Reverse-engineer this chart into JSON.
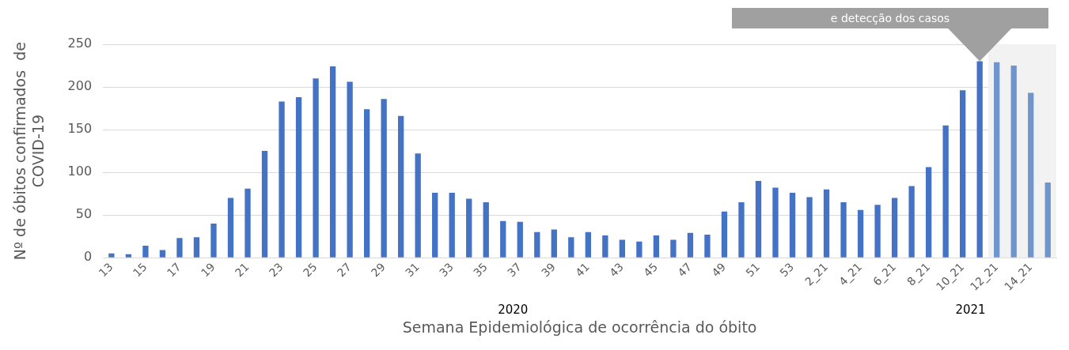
{
  "chart_data": {
    "type": "bar",
    "xlabel": "Semana Epidemiológica de ocorrência do óbito",
    "ylabel": "Nº de óbitos confirmados  de COVID-19",
    "categories": [
      "13",
      null,
      "15",
      null,
      "17",
      null,
      "19",
      null,
      "21",
      null,
      "23",
      null,
      "25",
      null,
      "27",
      null,
      "29",
      null,
      "31",
      null,
      "33",
      null,
      "35",
      null,
      "37",
      null,
      "39",
      null,
      "41",
      null,
      "43",
      null,
      "45",
      null,
      "47",
      null,
      "49",
      null,
      "51",
      null,
      "53",
      null,
      "2_21",
      null,
      "4_21",
      null,
      "6_21",
      null,
      "8_21",
      null,
      "10_21",
      null,
      "12_21",
      null,
      "14_21",
      null
    ],
    "values": [
      5,
      4,
      14,
      9,
      23,
      24,
      40,
      70,
      81,
      125,
      183,
      188,
      210,
      224,
      206,
      174,
      186,
      166,
      122,
      76,
      76,
      69,
      65,
      43,
      42,
      30,
      33,
      24,
      30,
      26,
      21,
      19,
      26,
      21,
      29,
      27,
      54,
      65,
      90,
      82,
      76,
      71,
      80,
      65,
      56,
      62,
      70,
      84,
      106,
      155,
      196,
      230,
      229,
      225,
      193,
      88
    ],
    "colors": [
      "#4472c4",
      "#4472c4",
      "#4472c4",
      "#4472c4",
      "#4472c4",
      "#4472c4",
      "#4472c4",
      "#4472c4",
      "#4472c4",
      "#4472c4",
      "#4472c4",
      "#4472c4",
      "#4472c4",
      "#4472c4",
      "#4472c4",
      "#4472c4",
      "#4472c4",
      "#4472c4",
      "#4472c4",
      "#4472c4",
      "#4472c4",
      "#4472c4",
      "#4472c4",
      "#4472c4",
      "#4472c4",
      "#4472c4",
      "#4472c4",
      "#4472c4",
      "#4472c4",
      "#4472c4",
      "#4472c4",
      "#4472c4",
      "#4472c4",
      "#4472c4",
      "#4472c4",
      "#4472c4",
      "#4472c4",
      "#4472c4",
      "#4472c4",
      "#4472c4",
      "#4472c4",
      "#4472c4",
      "#4472c4",
      "#4472c4",
      "#4472c4",
      "#4472c4",
      "#4472c4",
      "#4472c4",
      "#4472c4",
      "#4472c4",
      "#4472c4",
      "#4472c4",
      "#7094cc",
      "#7094cc",
      "#7094cc",
      "#7094cc"
    ],
    "ylim": [
      0,
      250
    ],
    "yticks": [
      0,
      50,
      100,
      150,
      200,
      250
    ],
    "grid": "y",
    "legend": false,
    "annotations": [
      "e detecção dos casos",
      "2020",
      "2021"
    ]
  }
}
